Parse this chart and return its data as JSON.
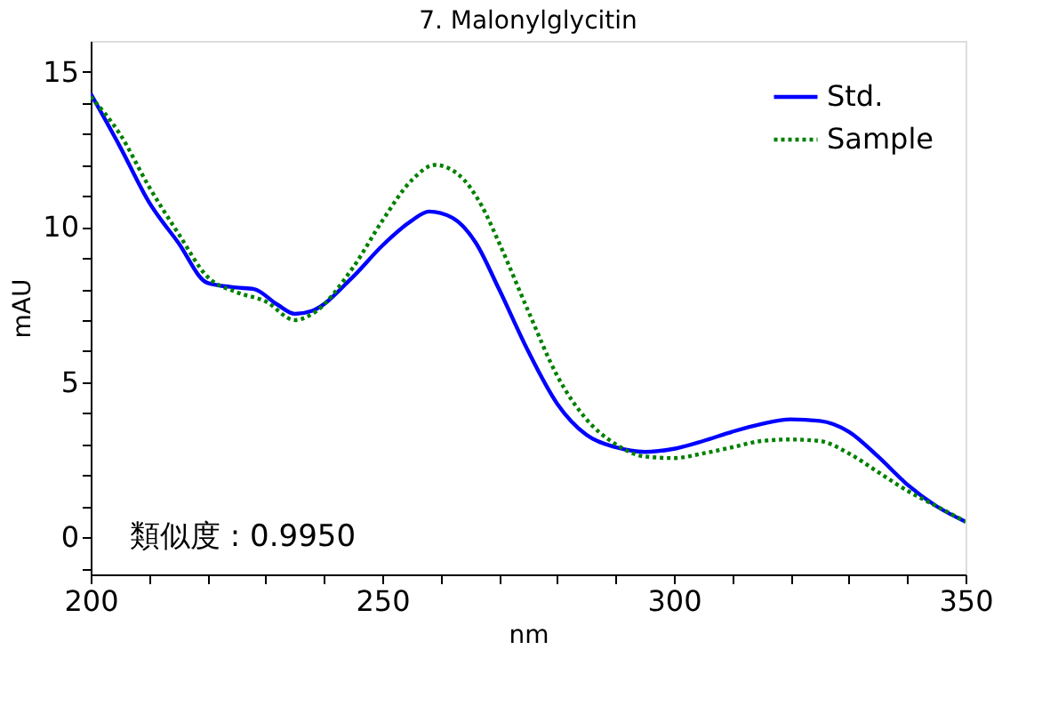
{
  "chart_data": {
    "type": "line",
    "title": "7. Malonylglycitin",
    "xlabel": "nm",
    "ylabel": "mAU",
    "xlim": [
      200,
      350
    ],
    "ylim": [
      -1.2,
      16
    ],
    "xticks": [
      200,
      {
        "value": 210,
        "label": null
      },
      {
        "value": 220,
        "label": null
      },
      {
        "value": 230,
        "label": null
      },
      {
        "value": 240,
        "label": null
      },
      250,
      {
        "value": 260,
        "label": null
      },
      {
        "value": 270,
        "label": null
      },
      {
        "value": 280,
        "label": null
      },
      {
        "value": 290,
        "label": null
      },
      300,
      {
        "value": 310,
        "label": null
      },
      {
        "value": 320,
        "label": null
      },
      {
        "value": 330,
        "label": null
      },
      {
        "value": 340,
        "label": null
      },
      350
    ],
    "yticks": [
      {
        "value": -1,
        "label": null
      },
      0,
      {
        "value": 1,
        "label": null
      },
      {
        "value": 2,
        "label": null
      },
      {
        "value": 3,
        "label": null
      },
      {
        "value": 4,
        "label": null
      },
      5,
      {
        "value": 6,
        "label": null
      },
      {
        "value": 7,
        "label": null
      },
      {
        "value": 8,
        "label": null
      },
      {
        "value": 9,
        "label": null
      },
      10,
      {
        "value": 11,
        "label": null
      },
      {
        "value": 12,
        "label": null
      },
      {
        "value": 13,
        "label": null
      },
      {
        "value": 14,
        "label": null
      },
      15
    ],
    "grid": false,
    "legend": "top right",
    "marker": "none",
    "annotations": [
      "類似度 : 0.9950"
    ],
    "series": [
      {
        "name": "Std.",
        "color": "#0000ff",
        "line_style": "solid",
        "x": [
          200,
          205,
          210,
          215,
          220,
          225,
          228,
          232,
          235,
          238,
          245,
          250,
          255,
          258,
          262,
          266,
          270,
          275,
          280,
          285,
          290,
          295,
          300,
          305,
          310,
          315,
          320,
          325,
          330,
          335,
          340,
          345,
          350
        ],
        "values": [
          14.3,
          12.6,
          10.8,
          9.5,
          8.2,
          8.05,
          8.0,
          7.5,
          7.2,
          7.3,
          8.4,
          9.4,
          10.2,
          10.5,
          10.3,
          9.5,
          8.0,
          6.0,
          4.3,
          3.3,
          2.9,
          2.75,
          2.85,
          3.1,
          3.4,
          3.65,
          3.8,
          3.75,
          3.4,
          2.6,
          1.7,
          1.0,
          0.5
        ]
      },
      {
        "name": "Sample",
        "color": "#008000",
        "line_style": "dotted",
        "x": [
          200,
          205,
          210,
          215,
          220,
          225,
          230,
          235,
          238,
          245,
          250,
          255,
          259,
          263,
          267,
          270,
          275,
          280,
          285,
          290,
          295,
          300,
          305,
          310,
          315,
          320,
          325,
          330,
          335,
          340,
          345,
          350
        ],
        "values": [
          14.2,
          13.0,
          11.3,
          9.8,
          8.4,
          7.9,
          7.6,
          7.0,
          7.2,
          8.7,
          10.2,
          11.5,
          12.0,
          11.7,
          10.7,
          9.5,
          7.3,
          5.2,
          3.8,
          3.0,
          2.6,
          2.55,
          2.7,
          2.9,
          3.1,
          3.15,
          3.1,
          2.7,
          2.1,
          1.5,
          1.0,
          0.5
        ]
      }
    ]
  }
}
